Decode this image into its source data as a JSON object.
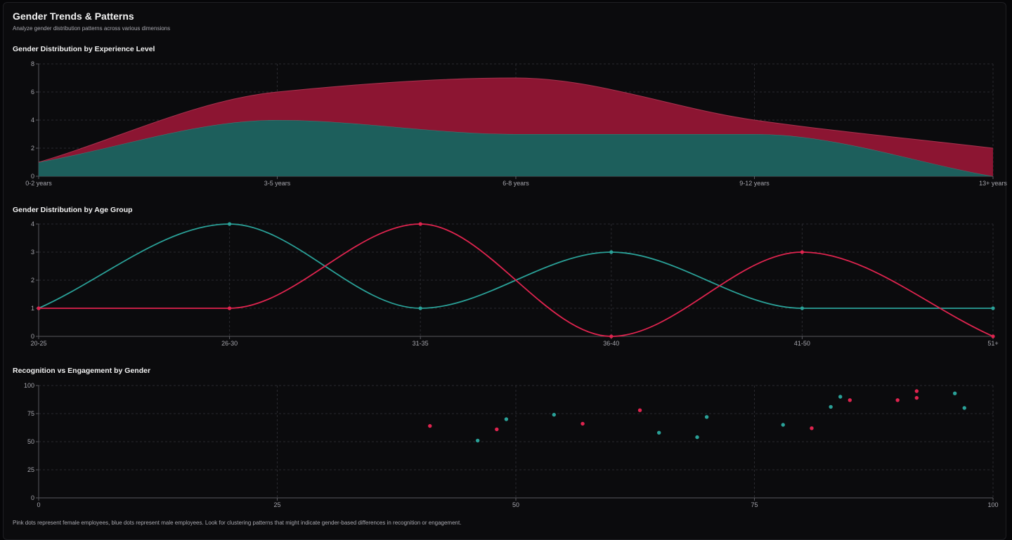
{
  "header": {
    "title": "Gender Trends & Patterns",
    "subtitle": "Analyze gender distribution patterns across various dimensions"
  },
  "colors": {
    "female": "#e0244f",
    "male": "#2aa198",
    "female_fill": "#8c1532",
    "male_fill": "#1d5f5c",
    "grid": "#2a2a2f",
    "axis": "#5a5a60"
  },
  "footnote": "Pink dots represent female employees, blue dots represent male employees. Look for clustering patterns that might indicate gender-based differences in recognition or engagement.",
  "chart_data": [
    {
      "type": "area",
      "title": "Gender Distribution by Experience Level",
      "stacked": true,
      "categories": [
        "0-2 years",
        "3-5 years",
        "6-8 years",
        "9-12 years",
        "13+ years"
      ],
      "series": [
        {
          "values": [
            1,
            4,
            3,
            3,
            0
          ],
          "color": "#2aa198"
        },
        {
          "values": [
            0,
            2,
            4,
            1,
            2
          ],
          "color": "#e0244f"
        }
      ],
      "yticks": [
        0,
        2,
        4,
        6,
        8
      ],
      "ylim": [
        0,
        8
      ],
      "grid": true
    },
    {
      "type": "line",
      "title": "Gender Distribution by Age Group",
      "categories": [
        "20-25",
        "26-30",
        "31-35",
        "36-40",
        "41-50",
        "51+"
      ],
      "series": [
        {
          "values": [
            1,
            4,
            1,
            3,
            1,
            1
          ],
          "color": "#2aa198"
        },
        {
          "values": [
            1,
            1,
            4,
            0,
            3,
            0
          ],
          "color": "#e0244f"
        }
      ],
      "yticks": [
        0,
        1,
        2,
        3,
        4
      ],
      "ylim": [
        0,
        4
      ],
      "grid": true
    },
    {
      "type": "scatter",
      "title": "Recognition vs Engagement by Gender",
      "xlim": [
        0,
        100
      ],
      "ylim": [
        0,
        100
      ],
      "xticks": [
        0,
        25,
        50,
        75,
        100
      ],
      "yticks": [
        0,
        25,
        50,
        75,
        100
      ],
      "grid": true,
      "series": [
        {
          "color": "#e0244f",
          "points": [
            [
              41,
              64
            ],
            [
              48,
              61
            ],
            [
              57,
              66
            ],
            [
              63,
              78
            ],
            [
              81,
              62
            ],
            [
              85,
              87
            ],
            [
              90,
              87
            ],
            [
              92,
              89
            ],
            [
              92,
              95
            ]
          ]
        },
        {
          "color": "#2aa198",
          "points": [
            [
              46,
              51
            ],
            [
              49,
              70
            ],
            [
              54,
              74
            ],
            [
              65,
              58
            ],
            [
              69,
              54
            ],
            [
              70,
              72
            ],
            [
              78,
              65
            ],
            [
              83,
              81
            ],
            [
              84,
              90
            ],
            [
              96,
              93
            ],
            [
              97,
              80
            ]
          ]
        }
      ]
    }
  ]
}
